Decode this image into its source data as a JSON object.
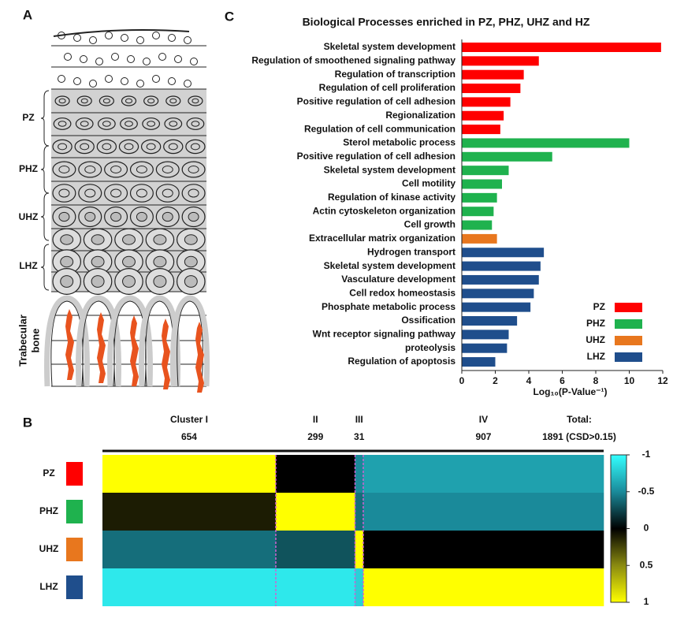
{
  "panel_a": {
    "letter": "A",
    "zones": [
      "PZ",
      "PHZ",
      "UHZ",
      "LHZ"
    ],
    "bone_label": [
      "Trabecular",
      "bone"
    ]
  },
  "chart_data": [
    {
      "panel": "C",
      "type": "bar",
      "orientation": "horizontal",
      "title": "Biological Processes enriched in PZ, PHZ, UHZ  and HZ",
      "x_label": "Log₁₀(P-Value⁻¹)",
      "categories": [
        "Skeletal system development",
        "Regulation of smoothened signaling pathway",
        "Regulation of transcription",
        "Regulation of cell proliferation",
        "Positive regulation of cell adhesion",
        "Regionalization",
        "Regulation of cell communication",
        "Sterol metabolic process",
        "Positive regulation of cell adhesion",
        "Skeletal system development",
        "Cell motility",
        "Regulation of kinase activity",
        "Actin cytoskeleton organization",
        "Cell growth",
        "Extracellular matrix organization",
        "Hydrogen transport",
        "Skeletal system development",
        "Vasculature development",
        "Cell redox homeostasis",
        "Phosphate metabolic process",
        "Ossification",
        "Wnt receptor signaling pathway",
        "proteolysis",
        "Regulation of apoptosis"
      ],
      "series": [
        {
          "name": "PZ",
          "color": "#ff0000",
          "values": [
            11.9,
            4.6,
            3.7,
            3.5,
            2.9,
            2.5,
            2.3,
            null,
            null,
            null,
            null,
            null,
            null,
            null,
            null,
            null,
            null,
            null,
            null,
            null,
            null,
            null,
            null,
            null
          ]
        },
        {
          "name": "PHZ",
          "color": "#1fb24e",
          "values": [
            null,
            null,
            null,
            null,
            null,
            null,
            null,
            10.0,
            5.4,
            2.8,
            2.4,
            2.1,
            1.9,
            1.8,
            null,
            null,
            null,
            null,
            null,
            null,
            null,
            null,
            null,
            null
          ]
        },
        {
          "name": "UHZ",
          "color": "#e8771e",
          "values": [
            null,
            null,
            null,
            null,
            null,
            null,
            null,
            null,
            null,
            null,
            null,
            null,
            null,
            null,
            2.1,
            null,
            null,
            null,
            null,
            null,
            null,
            null,
            null,
            null
          ]
        },
        {
          "name": "LHZ",
          "color": "#1f4e8c",
          "values": [
            null,
            null,
            null,
            null,
            null,
            null,
            null,
            null,
            null,
            null,
            null,
            null,
            null,
            null,
            null,
            4.9,
            4.7,
            4.6,
            4.3,
            4.1,
            3.3,
            2.8,
            2.7,
            2.0
          ]
        }
      ],
      "xlim": [
        0,
        12
      ],
      "xticks": [
        0,
        2,
        4,
        6,
        8,
        10,
        12
      ],
      "legend": "lower-right"
    },
    {
      "panel": "B",
      "type": "heatmap",
      "columns": [
        "Cluster I",
        "II",
        "III",
        "IV"
      ],
      "column_sizes": [
        654,
        299,
        31,
        907
      ],
      "total_label": "Total:",
      "total_text": "1891 (CSD>0.15)",
      "rows": [
        "PZ",
        "PHZ",
        "UHZ",
        "LHZ"
      ],
      "row_colors": [
        "#ff0000",
        "#1fb24e",
        "#e8771e",
        "#1f4e8c"
      ],
      "values": [
        [
          1,
          0,
          -0.5,
          -0.6
        ],
        [
          0.1,
          1,
          -0.4,
          -0.5
        ],
        [
          -0.4,
          -0.3,
          1,
          0
        ],
        [
          -0.9,
          -0.9,
          -0.8,
          1
        ]
      ],
      "clim": [
        -1,
        1
      ],
      "cticks": [
        -1,
        -0.5,
        0,
        0.5,
        1
      ]
    }
  ]
}
